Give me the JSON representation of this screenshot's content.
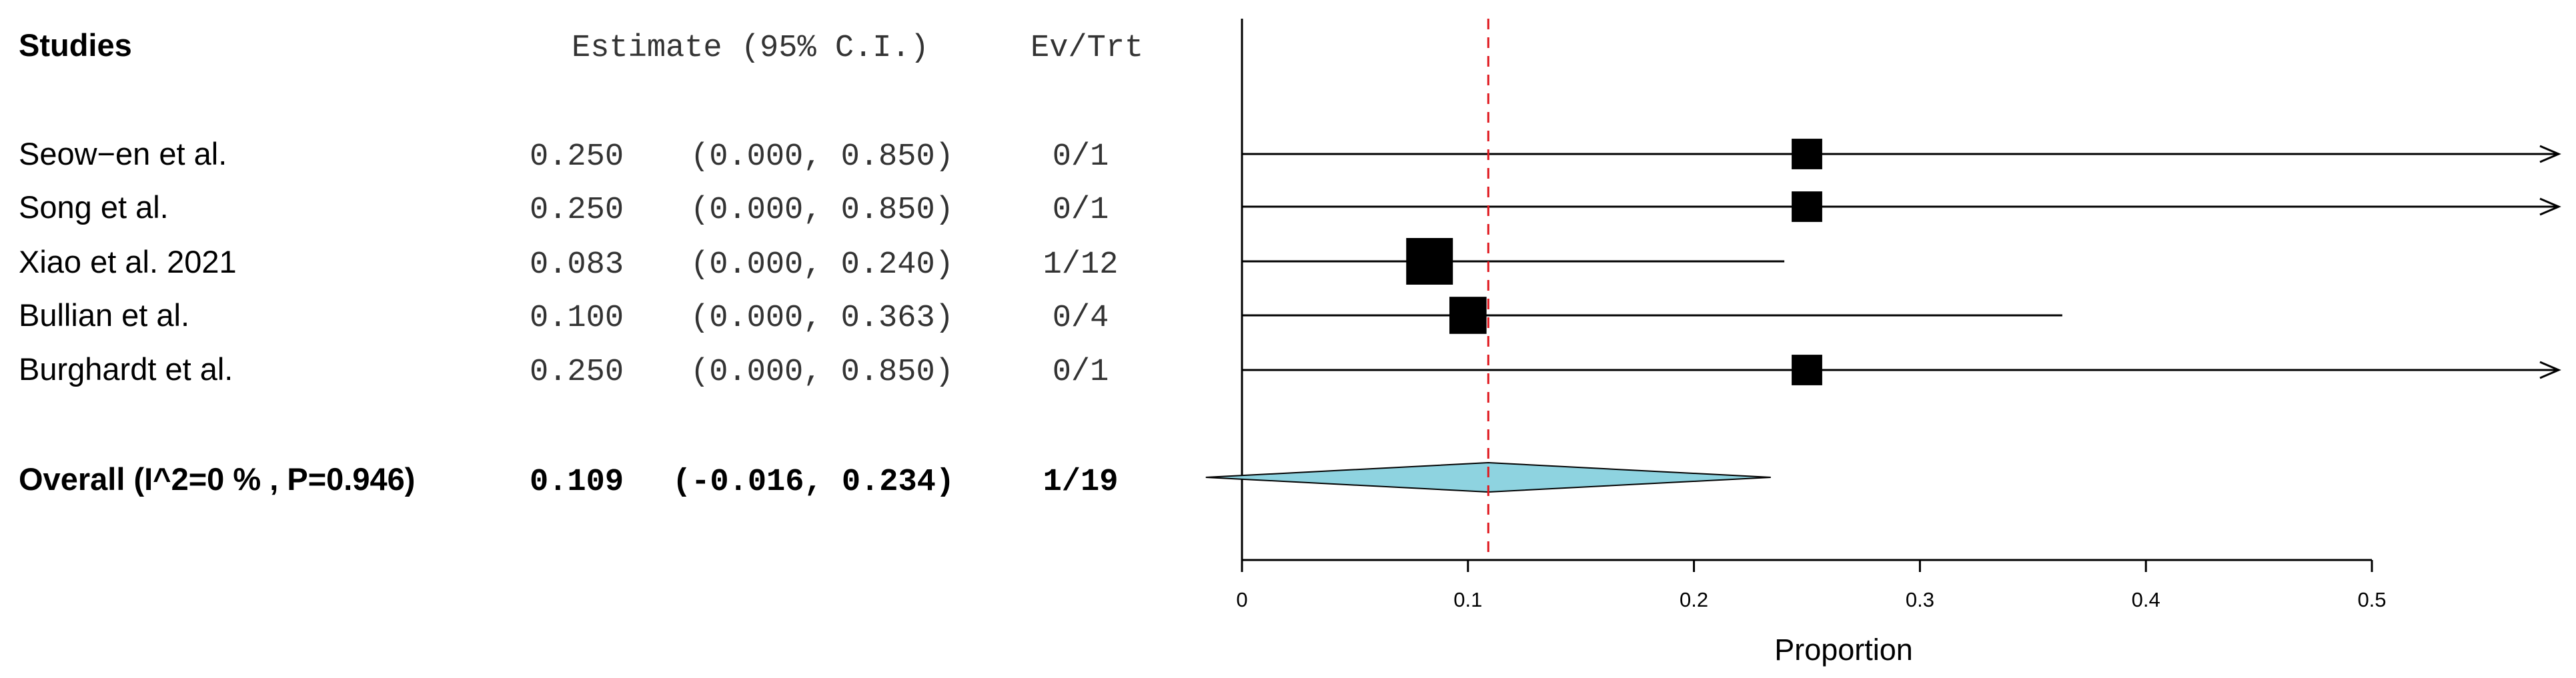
{
  "chart_data": {
    "type": "forest",
    "headers": {
      "studies": "Studies",
      "estimate": "Estimate (95% C.I.)",
      "events": "Ev/Trt"
    },
    "studies": [
      {
        "name": "Seow−en et al.",
        "estimate": 0.25,
        "lower": 0.0,
        "upper": 0.85,
        "estimate_text": "0.250",
        "ci_text": "(0.000, 0.850)",
        "events": "0/1",
        "weight": 1
      },
      {
        "name": "Song et al.",
        "estimate": 0.25,
        "lower": 0.0,
        "upper": 0.85,
        "estimate_text": "0.250",
        "ci_text": "(0.000, 0.850)",
        "events": "0/1",
        "weight": 1
      },
      {
        "name": "Xiao et al. 2021",
        "estimate": 0.083,
        "lower": 0.0,
        "upper": 0.24,
        "estimate_text": "0.083",
        "ci_text": "(0.000, 0.240)",
        "events": "1/12",
        "weight": 12
      },
      {
        "name": "Bullian et al.",
        "estimate": 0.1,
        "lower": 0.0,
        "upper": 0.363,
        "estimate_text": "0.100",
        "ci_text": "(0.000, 0.363)",
        "events": "0/4",
        "weight": 4
      },
      {
        "name": "Burghardt et al.",
        "estimate": 0.25,
        "lower": 0.0,
        "upper": 0.85,
        "estimate_text": "0.250",
        "ci_text": "(0.000, 0.850)",
        "events": "0/1",
        "weight": 1
      }
    ],
    "overall": {
      "label": "Overall (I^2=0 % , P=0.946)",
      "estimate": 0.109,
      "lower": -0.016,
      "upper": 0.234,
      "estimate_text": "0.109",
      "ci_text": "(-0.016, 0.234)",
      "events": "1/19"
    },
    "x_axis": {
      "label": "Proportion",
      "ticks": [
        0,
        0.1,
        0.2,
        0.3,
        0.4,
        0.5
      ],
      "tick_labels": [
        "0",
        "0.1",
        "0.2",
        "0.3",
        "0.4",
        "0.5"
      ],
      "range": [
        0,
        0.5
      ],
      "clip_upper": 0.58
    },
    "reference_line": 0.109,
    "colors": {
      "diamond": "#8ed3e0",
      "reference": "#e0191f",
      "marks": "#000000"
    }
  }
}
